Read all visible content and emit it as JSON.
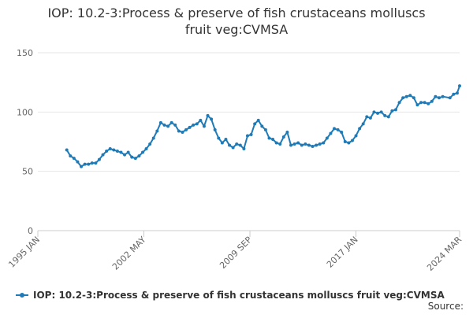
{
  "chart_data": {
    "type": "line",
    "title": "IOP: 10.2-3:Process & preserve of fish crustaceans molluscs fruit veg:CVMSA",
    "source": "Source:",
    "x": [
      "1997 JAN",
      "1997 APR",
      "1997 JUL",
      "1997 OCT",
      "1998 JAN",
      "1998 APR",
      "1998 JUL",
      "1998 OCT",
      "1999 JAN",
      "1999 APR",
      "1999 JUL",
      "1999 OCT",
      "2000 JAN",
      "2000 APR",
      "2000 JUL",
      "2000 OCT",
      "2001 JAN",
      "2001 APR",
      "2001 JUL",
      "2001 OCT",
      "2002 JAN",
      "2002 APR",
      "2002 JUL",
      "2002 OCT",
      "2003 JAN",
      "2003 APR",
      "2003 JUL",
      "2003 OCT",
      "2004 JAN",
      "2004 APR",
      "2004 JUL",
      "2004 OCT",
      "2005 JAN",
      "2005 APR",
      "2005 JUL",
      "2005 OCT",
      "2006 JAN",
      "2006 APR",
      "2006 JUL",
      "2006 OCT",
      "2007 JAN",
      "2007 APR",
      "2007 JUL",
      "2007 OCT",
      "2008 JAN",
      "2008 APR",
      "2008 JUL",
      "2008 OCT",
      "2009 JAN",
      "2009 APR",
      "2009 JUL",
      "2009 OCT",
      "2010 JAN",
      "2010 APR",
      "2010 JUL",
      "2010 OCT",
      "2011 JAN",
      "2011 APR",
      "2011 JUL",
      "2011 OCT",
      "2012 JAN",
      "2012 APR",
      "2012 JUL",
      "2012 OCT",
      "2013 JAN",
      "2013 APR",
      "2013 JUL",
      "2013 OCT",
      "2014 JAN",
      "2014 APR",
      "2014 JUL",
      "2014 OCT",
      "2015 JAN",
      "2015 APR",
      "2015 JUL",
      "2015 OCT",
      "2016 JAN",
      "2016 APR",
      "2016 JUL",
      "2016 OCT",
      "2017 JAN",
      "2017 APR",
      "2017 JUL",
      "2017 OCT",
      "2018 JAN",
      "2018 APR",
      "2018 JUL",
      "2018 OCT",
      "2019 JAN",
      "2019 APR",
      "2019 JUL",
      "2019 OCT",
      "2020 JAN",
      "2020 APR",
      "2020 JUL",
      "2020 OCT",
      "2021 JAN",
      "2021 APR",
      "2021 JUL",
      "2021 OCT",
      "2022 JAN",
      "2022 APR",
      "2022 JUL",
      "2022 OCT",
      "2023 JAN",
      "2023 JUL",
      "2023 OCT",
      "2024 JAN",
      "2024 MAR"
    ],
    "series": [
      {
        "name": "IOP: 10.2-3:Process & preserve of fish crustaceans molluscs fruit veg:CVMSA",
        "color": "#1f7bb8",
        "values": [
          68,
          63,
          61,
          58,
          54,
          56,
          56,
          57,
          57,
          60,
          64,
          67,
          69,
          68,
          67,
          66,
          64,
          66,
          62,
          61,
          63,
          66,
          69,
          73,
          78,
          84,
          91,
          89,
          88,
          91,
          89,
          84,
          83,
          85,
          87,
          89,
          90,
          93,
          88,
          97,
          94,
          85,
          78,
          74,
          77,
          72,
          70,
          73,
          72,
          69,
          80,
          81,
          90,
          93,
          88,
          85,
          78,
          77,
          74,
          73,
          79,
          83,
          72,
          73,
          74,
          72,
          73,
          72,
          71,
          72,
          73,
          74,
          78,
          82,
          86,
          85,
          83,
          75,
          74,
          76,
          80,
          86,
          90,
          96,
          95,
          100,
          99,
          100,
          97,
          96,
          101,
          102,
          108,
          112,
          113,
          114,
          112,
          106,
          108,
          108,
          107,
          109,
          113,
          112,
          113,
          112,
          115,
          116,
          122
        ]
      }
    ],
    "xlim": [
      "1995 JAN",
      "2024 MAR"
    ],
    "xticks": [
      "1995 JAN",
      "2002 MAY",
      "2009 SEP",
      "2017 JAN",
      "2024 MAR"
    ],
    "ylim": [
      0,
      150
    ],
    "yticks": [
      0,
      50,
      100,
      150
    ],
    "grid": true
  }
}
